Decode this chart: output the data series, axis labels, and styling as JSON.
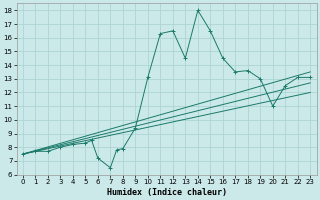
{
  "xlabel": "Humidex (Indice chaleur)",
  "xlim": [
    -0.5,
    23.5
  ],
  "ylim": [
    6,
    18.5
  ],
  "xticks": [
    0,
    1,
    2,
    3,
    4,
    5,
    6,
    7,
    8,
    9,
    10,
    11,
    12,
    13,
    14,
    15,
    16,
    17,
    18,
    19,
    20,
    21,
    22,
    23
  ],
  "yticks": [
    6,
    7,
    8,
    9,
    10,
    11,
    12,
    13,
    14,
    15,
    16,
    17,
    18
  ],
  "bg_color": "#cce9e9",
  "grid_color": "#aed4d4",
  "line_color": "#1a7a6a",
  "series": [
    [
      0,
      7.5
    ],
    [
      1,
      7.7
    ],
    [
      2,
      7.7
    ],
    [
      3,
      8.0
    ],
    [
      4,
      8.2
    ],
    [
      5,
      8.3
    ],
    [
      5.5,
      8.5
    ],
    [
      6,
      7.2
    ],
    [
      7,
      6.5
    ],
    [
      7.5,
      7.8
    ],
    [
      8,
      7.9
    ],
    [
      9,
      9.4
    ],
    [
      10,
      13.1
    ],
    [
      11,
      16.3
    ],
    [
      12,
      16.5
    ],
    [
      13,
      14.5
    ],
    [
      14,
      18.0
    ],
    [
      15,
      16.5
    ],
    [
      16,
      14.5
    ],
    [
      17,
      13.5
    ],
    [
      18,
      13.6
    ],
    [
      19,
      13.0
    ],
    [
      20,
      11.0
    ],
    [
      21,
      12.5
    ],
    [
      22,
      13.1
    ],
    [
      23,
      13.1
    ]
  ],
  "trend_lines": [
    [
      [
        0,
        7.5
      ],
      [
        23,
        13.5
      ]
    ],
    [
      [
        0,
        7.5
      ],
      [
        23,
        12.7
      ]
    ],
    [
      [
        0,
        7.5
      ],
      [
        23,
        12.0
      ]
    ]
  ]
}
